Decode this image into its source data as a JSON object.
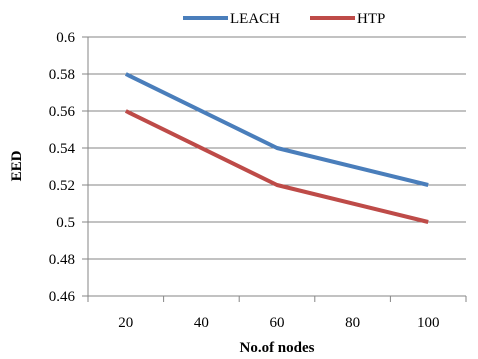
{
  "chart_data": {
    "type": "line",
    "title": "",
    "xlabel": "No.of nodes",
    "ylabel": "EED",
    "x": [
      20,
      60,
      100
    ],
    "x_ticks": [
      "20",
      "40",
      "60",
      "80",
      "100"
    ],
    "xlim": [
      10,
      110
    ],
    "ylim": [
      0.46,
      0.6
    ],
    "y_ticks": [
      "0.46",
      "0.48",
      "0.5",
      "0.52",
      "0.54",
      "0.56",
      "0.58",
      "0.6"
    ],
    "grid": "horizontal",
    "legend_position": "top",
    "series": [
      {
        "name": "LEACH",
        "color": "#4a7ebb",
        "values": [
          0.58,
          0.54,
          0.52
        ]
      },
      {
        "name": "HTP",
        "color": "#be4b48",
        "values": [
          0.56,
          0.52,
          0.5
        ]
      }
    ]
  }
}
